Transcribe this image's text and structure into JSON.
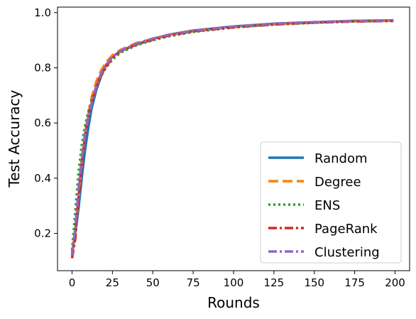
{
  "chart_data": {
    "type": "line",
    "title": "",
    "xlabel": "Rounds",
    "ylabel": "Test Accuracy",
    "xlim": [
      -9,
      209
    ],
    "ylim": [
      0.065,
      1.02
    ],
    "xticks": [
      0,
      25,
      50,
      75,
      100,
      125,
      150,
      175,
      200
    ],
    "yticks": [
      0.2,
      0.4,
      0.6,
      0.8,
      1.0
    ],
    "ytick_labels": [
      "0.2",
      "0.4",
      "0.6",
      "0.8",
      "1.0"
    ],
    "grid": false,
    "legend_position": "lower-right",
    "x": [
      0,
      2,
      4,
      6,
      8,
      10,
      12,
      15,
      18,
      21,
      25,
      30,
      40,
      50,
      60,
      75,
      100,
      125,
      150,
      175,
      199
    ],
    "series": [
      {
        "name": "Random",
        "color": "#1f77b4",
        "dash": "solid",
        "values": [
          0.13,
          0.2,
          0.29,
          0.4,
          0.5,
          0.58,
          0.65,
          0.72,
          0.77,
          0.81,
          0.84,
          0.86,
          0.885,
          0.905,
          0.92,
          0.935,
          0.95,
          0.96,
          0.965,
          0.97,
          0.972
        ]
      },
      {
        "name": "Degree",
        "color": "#ff7f0e",
        "dash": "dashed",
        "values": [
          0.12,
          0.21,
          0.33,
          0.46,
          0.56,
          0.63,
          0.69,
          0.75,
          0.79,
          0.82,
          0.845,
          0.865,
          0.89,
          0.905,
          0.918,
          0.933,
          0.948,
          0.958,
          0.964,
          0.969,
          0.971
        ]
      },
      {
        "name": "ENS",
        "color": "#2ca02c",
        "dash": "dotted",
        "values": [
          0.14,
          0.28,
          0.42,
          0.52,
          0.59,
          0.64,
          0.68,
          0.73,
          0.77,
          0.8,
          0.83,
          0.855,
          0.882,
          0.9,
          0.914,
          0.93,
          0.946,
          0.957,
          0.963,
          0.968,
          0.97
        ]
      },
      {
        "name": "PageRank",
        "color": "#d62728",
        "dash": "dashdot",
        "values": [
          0.11,
          0.18,
          0.33,
          0.45,
          0.55,
          0.62,
          0.67,
          0.73,
          0.775,
          0.805,
          0.835,
          0.86,
          0.885,
          0.902,
          0.917,
          0.932,
          0.947,
          0.957,
          0.964,
          0.968,
          0.97
        ]
      },
      {
        "name": "Clustering",
        "color": "#9467bd",
        "dash": "dashdot",
        "values": [
          0.12,
          0.22,
          0.36,
          0.47,
          0.56,
          0.62,
          0.67,
          0.735,
          0.78,
          0.81,
          0.84,
          0.862,
          0.888,
          0.906,
          0.92,
          0.935,
          0.95,
          0.96,
          0.966,
          0.97,
          0.972
        ]
      }
    ]
  }
}
